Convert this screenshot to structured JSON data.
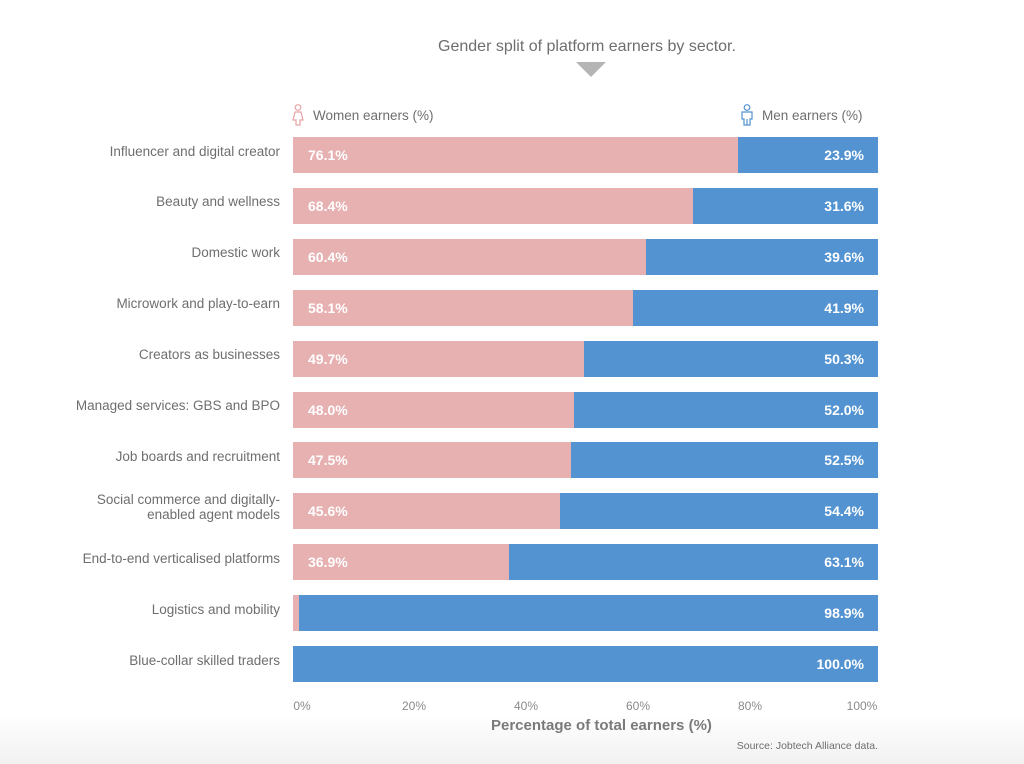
{
  "chart_data": {
    "type": "bar",
    "orientation": "horizontal",
    "stacked": true,
    "title": "Gender split of platform earners by sector.",
    "xlabel": "Percentage of total earners (%)",
    "ylabel": "",
    "xlim": [
      0,
      100
    ],
    "x_ticks": [
      "0%",
      "20%",
      "40%",
      "60%",
      "80%",
      "100%"
    ],
    "x_tick_values": [
      0,
      20,
      40,
      60,
      80,
      100
    ],
    "grid": false,
    "legend_placement": "top",
    "categories": [
      "Influencer and digital creator",
      "Beauty and wellness",
      "Domestic work",
      "Microwork and play-to-earn",
      "Creators as businesses",
      "Managed services: GBS and BPO",
      "Job boards and recruitment",
      "Social commerce and digitally-enabled agent models",
      "End-to-end verticalised platforms",
      "Logistics and mobility",
      "Blue-collar skilled traders"
    ],
    "category_lines": [
      [
        "Influencer and digital creator"
      ],
      [
        "Beauty and wellness"
      ],
      [
        "Domestic work"
      ],
      [
        "Microwork and play-to-earn"
      ],
      [
        "Creators as businesses"
      ],
      [
        "Managed services: GBS and BPO"
      ],
      [
        "Job boards and recruitment"
      ],
      [
        "Social commerce and digitally-",
        "enabled agent models"
      ],
      [
        "End-to-end verticalised platforms"
      ],
      [
        "Logistics and mobility"
      ],
      [
        "Blue-collar skilled traders"
      ]
    ],
    "series": [
      {
        "name": "Women earners (%)",
        "color": "#e7b0b1",
        "values": [
          76.1,
          68.4,
          60.4,
          58.1,
          49.7,
          48.0,
          47.5,
          45.6,
          36.9,
          1.1,
          0.0
        ],
        "labels": [
          "76.1%",
          "68.4%",
          "60.4%",
          "58.1%",
          "49.7%",
          "48.0%",
          "47.5%",
          "45.6%",
          "36.9%",
          "",
          ""
        ]
      },
      {
        "name": "Men earners (%)",
        "color": "#5393d1",
        "values": [
          23.9,
          31.6,
          39.6,
          41.9,
          50.3,
          52.0,
          52.5,
          54.4,
          63.1,
          98.9,
          100.0
        ],
        "labels": [
          "23.9%",
          "31.6%",
          "39.6%",
          "41.9%",
          "50.3%",
          "52.0%",
          "52.5%",
          "54.4%",
          "63.1%",
          "98.9%",
          "100.0%"
        ]
      }
    ],
    "legend": {
      "women": {
        "label": "Women earners (%)",
        "icon": "female-person-icon",
        "color": "#e7a3a5"
      },
      "men": {
        "label": "Men earners (%)",
        "icon": "male-person-icon",
        "color": "#5393d1"
      }
    },
    "source": "Source: Jobtech Alliance data."
  }
}
